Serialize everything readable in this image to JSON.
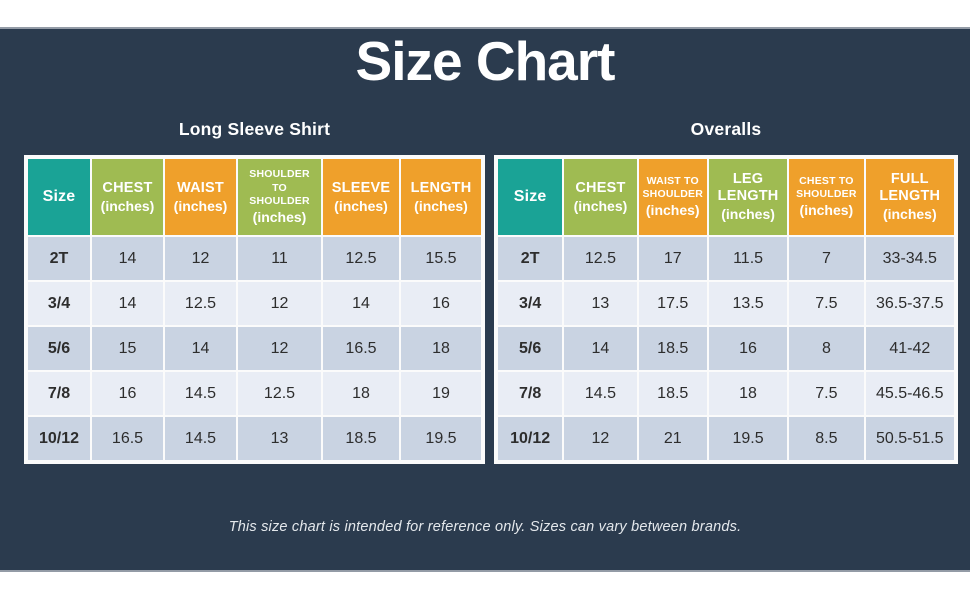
{
  "page": {
    "title": "Size Chart",
    "footnote": "This size chart is intended for reference only. Sizes can vary between brands."
  },
  "colors": {
    "navy": "#2b3b4e",
    "teal": "#1aa396",
    "green": "#9fbb52",
    "orange": "#efa02b",
    "row_dark": "#c9d3e2",
    "row_light": "#e9edf5",
    "header_text": "#ffffff"
  },
  "chart_data": [
    {
      "type": "table",
      "title": "Long Sleeve Shirt",
      "columns": [
        {
          "label": "Size",
          "sub": "",
          "color": "teal"
        },
        {
          "label": "CHEST",
          "sub": "(inches)",
          "color": "green"
        },
        {
          "label": "WAIST",
          "sub": "(inches)",
          "color": "orange"
        },
        {
          "label": "SHOULDER TO SHOULDER",
          "sub": "(inches)",
          "color": "green",
          "small": true
        },
        {
          "label": "SLEEVE",
          "sub": "(inches)",
          "color": "orange"
        },
        {
          "label": "LENGTH",
          "sub": "(inches)",
          "color": "orange"
        }
      ],
      "rows": [
        [
          "2T",
          "14",
          "12",
          "11",
          "12.5",
          "15.5"
        ],
        [
          "3/4",
          "14",
          "12.5",
          "12",
          "14",
          "16"
        ],
        [
          "5/6",
          "15",
          "14",
          "12",
          "16.5",
          "18"
        ],
        [
          "7/8",
          "16",
          "14.5",
          "12.5",
          "18",
          "19"
        ],
        [
          "10/12",
          "16.5",
          "14.5",
          "13",
          "18.5",
          "19.5"
        ]
      ]
    },
    {
      "type": "table",
      "title": "Overalls",
      "columns": [
        {
          "label": "Size",
          "sub": "",
          "color": "teal"
        },
        {
          "label": "CHEST",
          "sub": "(inches)",
          "color": "green"
        },
        {
          "label": "WAIST TO SHOULDER",
          "sub": "(inches)",
          "color": "orange",
          "small": true
        },
        {
          "label": "LEG LENGTH",
          "sub": "(inches)",
          "color": "green"
        },
        {
          "label": "CHEST TO SHOULDER",
          "sub": "(inches)",
          "color": "orange",
          "small": true
        },
        {
          "label": "FULL LENGTH",
          "sub": "(inches)",
          "color": "orange"
        }
      ],
      "rows": [
        [
          "2T",
          "12.5",
          "17",
          "11.5",
          "7",
          "33-34.5"
        ],
        [
          "3/4",
          "13",
          "17.5",
          "13.5",
          "7.5",
          "36.5-37.5"
        ],
        [
          "5/6",
          "14",
          "18.5",
          "16",
          "8",
          "41-42"
        ],
        [
          "7/8",
          "14.5",
          "18.5",
          "18",
          "7.5",
          "45.5-46.5"
        ],
        [
          "10/12",
          "12",
          "21",
          "19.5",
          "8.5",
          "50.5-51.5"
        ]
      ]
    }
  ]
}
